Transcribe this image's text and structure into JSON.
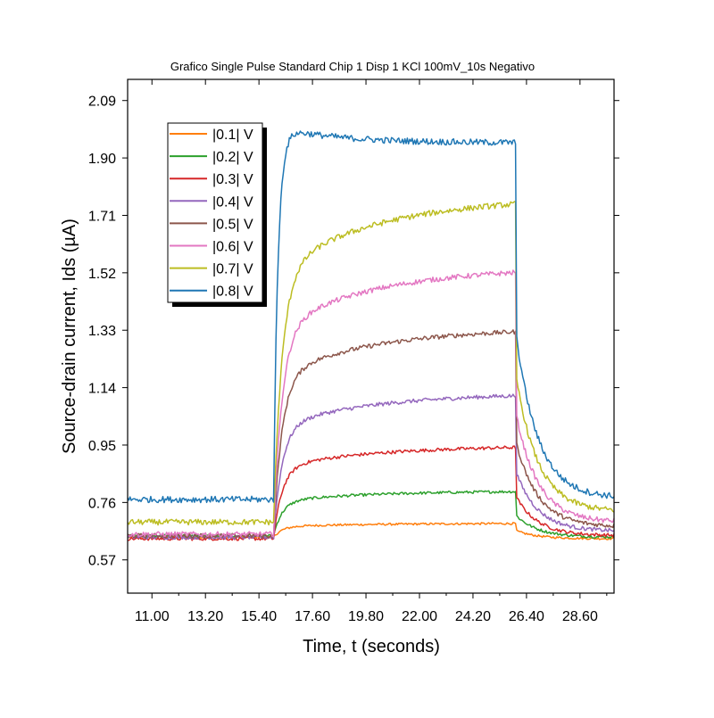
{
  "chart_data": {
    "type": "line",
    "title": "Grafico Single Pulse Standard Chip 1 Disp 1 KCl 100mV_10s Negativo",
    "xlabel": "Time, t (seconds)",
    "ylabel": "Source-drain current, Ids (µA)",
    "xlim": [
      10.0,
      30.0
    ],
    "ylim": [
      0.46,
      2.16
    ],
    "x_ticks": [
      11.0,
      13.2,
      15.4,
      17.6,
      19.8,
      22.0,
      24.2,
      26.4,
      28.6
    ],
    "x_tick_labels": [
      "11.00",
      "13.20",
      "15.40",
      "17.60",
      "19.80",
      "22.00",
      "24.20",
      "26.40",
      "28.60"
    ],
    "y_ticks": [
      0.57,
      0.76,
      0.95,
      1.14,
      1.33,
      1.52,
      1.71,
      1.9,
      2.09
    ],
    "y_tick_labels": [
      "0.57",
      "0.76",
      "0.95",
      "1.14",
      "1.33",
      "1.52",
      "1.71",
      "1.90",
      "2.09"
    ],
    "pulse": {
      "on": 16.0,
      "off": 26.0
    },
    "grid": false,
    "legend_position": "top-left",
    "series": [
      {
        "name": "|0.1| V",
        "color": "#FF7F0E",
        "base": 0.645,
        "end": 0.69,
        "final": 0.64
      },
      {
        "name": "|0.2| V",
        "color": "#2CA02C",
        "base": 0.65,
        "end": 0.795,
        "final": 0.645
      },
      {
        "name": "|0.3| V",
        "color": "#D62728",
        "base": 0.64,
        "end": 0.94,
        "final": 0.65
      },
      {
        "name": "|0.4| V",
        "color": "#9467BD",
        "base": 0.645,
        "end": 1.11,
        "final": 0.665
      },
      {
        "name": "|0.5| V",
        "color": "#8C564B",
        "base": 0.65,
        "end": 1.32,
        "final": 0.68
      },
      {
        "name": "|0.6| V",
        "color": "#E377C2",
        "base": 0.655,
        "end": 1.515,
        "final": 0.695
      },
      {
        "name": "|0.7| V",
        "color": "#BCBD22",
        "base": 0.695,
        "end": 1.74,
        "final": 0.73
      },
      {
        "name": "|0.8| V",
        "color": "#1F77B4",
        "base": 0.77,
        "end": 1.95,
        "final": 0.775,
        "peak": 1.99
      }
    ]
  }
}
